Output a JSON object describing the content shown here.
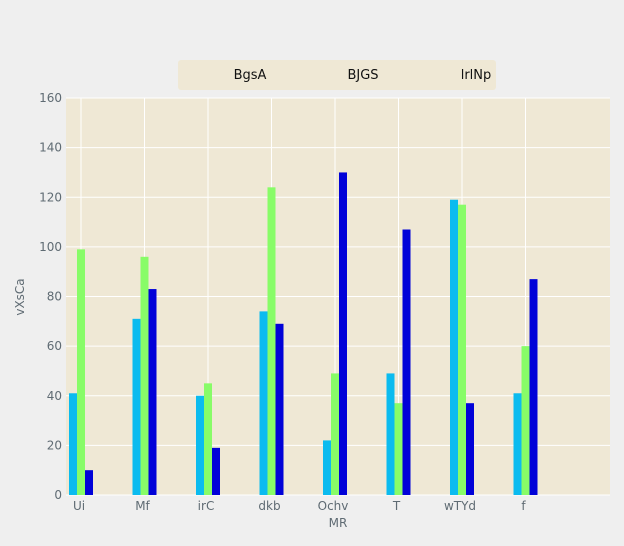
{
  "chart_data": {
    "type": "bar",
    "title": "",
    "xlabel": "MR",
    "ylabel": "vXsCa",
    "categories": [
      "Ui",
      "Mf",
      "irC",
      "dkb",
      "Ochv",
      "T",
      "wTYd",
      "f"
    ],
    "series": [
      {
        "name": "BgsA",
        "color": "#0bbbef",
        "values": [
          41,
          71,
          40,
          74,
          22,
          49,
          119,
          41
        ]
      },
      {
        "name": "BJGS",
        "color": "#88fc68",
        "values": [
          99,
          96,
          45,
          124,
          49,
          37,
          117,
          60
        ]
      },
      {
        "name": "lrlNp",
        "color": "#0102d8",
        "values": [
          10,
          83,
          19,
          69,
          130,
          107,
          37,
          87
        ]
      }
    ],
    "ylim": [
      0,
      160
    ],
    "yticks": [
      0,
      20,
      40,
      60,
      80,
      100,
      120,
      140,
      160
    ],
    "grid": true,
    "legend_position": "top-center",
    "colors": {
      "plot_background": "#efe8d5",
      "page_background": "#efefef",
      "grid": "#ffffff",
      "text": "#5f6b73"
    }
  }
}
